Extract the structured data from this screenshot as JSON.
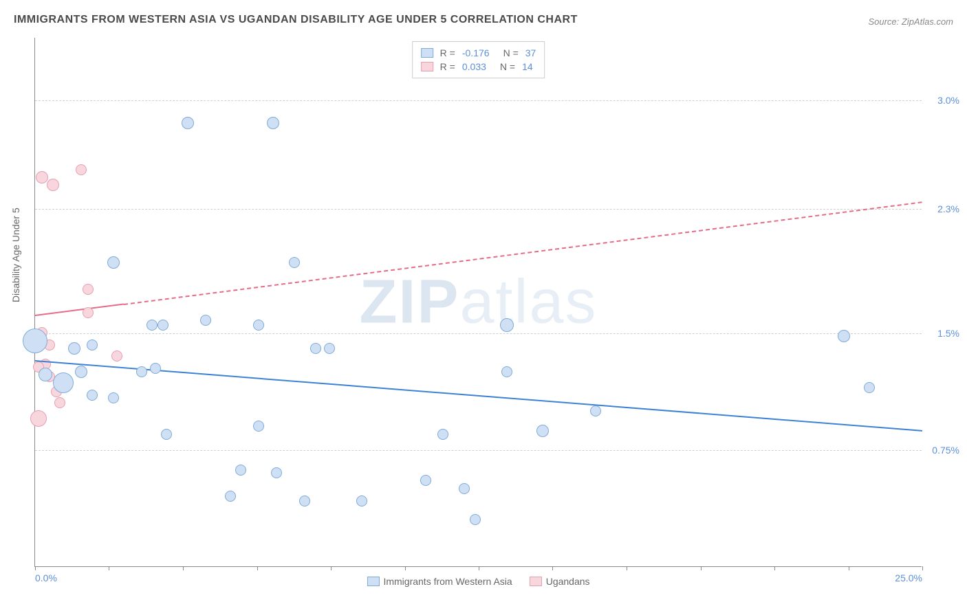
{
  "title": "IMMIGRANTS FROM WESTERN ASIA VS UGANDAN DISABILITY AGE UNDER 5 CORRELATION CHART",
  "source": "Source: ZipAtlas.com",
  "watermark_a": "ZIP",
  "watermark_b": "atlas",
  "y_label": "Disability Age Under 5",
  "chart": {
    "type": "scatter",
    "background_color": "#ffffff",
    "grid_color": "#d0d0d0",
    "axis_color": "#888888",
    "x_range": [
      0.0,
      25.0
    ],
    "y_range": [
      0.0,
      3.4
    ],
    "x_ticks": [
      0.0,
      25.0
    ],
    "x_tick_labels": [
      "0.0%",
      "25.0%"
    ],
    "y_gridlines": [
      0.75,
      1.5,
      2.3,
      3.0
    ],
    "y_tick_labels": [
      "0.75%",
      "1.5%",
      "2.3%",
      "3.0%"
    ],
    "x_tick_marks": [
      0,
      2.08,
      4.17,
      6.25,
      8.33,
      10.42,
      12.5,
      14.58,
      16.67,
      18.75,
      20.83,
      22.92,
      25.0
    ],
    "series": [
      {
        "name": "Immigrants from Western Asia",
        "fill": "#cfe0f5",
        "stroke": "#7faad8",
        "R": "-0.176",
        "N": "37",
        "trend": {
          "x1": 0.0,
          "y1": 1.33,
          "x2": 25.0,
          "y2": 0.88,
          "solid_until_x": 25.0,
          "color": "#3b82d6",
          "width": 2.5
        },
        "points": [
          {
            "x": 0.0,
            "y": 1.45,
            "r": 18
          },
          {
            "x": 0.8,
            "y": 1.18,
            "r": 15
          },
          {
            "x": 0.3,
            "y": 1.23,
            "r": 10
          },
          {
            "x": 1.1,
            "y": 1.4,
            "r": 9
          },
          {
            "x": 1.3,
            "y": 1.25,
            "r": 9
          },
          {
            "x": 1.6,
            "y": 1.42,
            "r": 8
          },
          {
            "x": 3.0,
            "y": 1.25,
            "r": 8
          },
          {
            "x": 2.2,
            "y": 1.08,
            "r": 8
          },
          {
            "x": 2.2,
            "y": 1.95,
            "r": 9
          },
          {
            "x": 3.6,
            "y": 1.55,
            "r": 8
          },
          {
            "x": 3.4,
            "y": 1.27,
            "r": 8
          },
          {
            "x": 4.8,
            "y": 1.58,
            "r": 8
          },
          {
            "x": 4.3,
            "y": 2.85,
            "r": 9
          },
          {
            "x": 6.7,
            "y": 2.85,
            "r": 9
          },
          {
            "x": 6.3,
            "y": 1.55,
            "r": 8
          },
          {
            "x": 5.8,
            "y": 0.62,
            "r": 8
          },
          {
            "x": 7.3,
            "y": 1.95,
            "r": 8
          },
          {
            "x": 7.9,
            "y": 1.4,
            "r": 8
          },
          {
            "x": 8.3,
            "y": 1.4,
            "r": 8
          },
          {
            "x": 11.0,
            "y": 0.55,
            "r": 8
          },
          {
            "x": 11.5,
            "y": 0.85,
            "r": 8
          },
          {
            "x": 12.1,
            "y": 0.5,
            "r": 8
          },
          {
            "x": 12.4,
            "y": 0.3,
            "r": 8
          },
          {
            "x": 13.3,
            "y": 1.25,
            "r": 8
          },
          {
            "x": 13.3,
            "y": 1.55,
            "r": 10
          },
          {
            "x": 14.3,
            "y": 0.87,
            "r": 9
          },
          {
            "x": 15.8,
            "y": 1.0,
            "r": 8
          },
          {
            "x": 22.8,
            "y": 1.48,
            "r": 9
          },
          {
            "x": 23.5,
            "y": 1.15,
            "r": 8
          },
          {
            "x": 3.7,
            "y": 0.85,
            "r": 8
          },
          {
            "x": 5.5,
            "y": 0.45,
            "r": 8
          },
          {
            "x": 6.3,
            "y": 0.9,
            "r": 8
          },
          {
            "x": 6.8,
            "y": 0.6,
            "r": 8
          },
          {
            "x": 7.6,
            "y": 0.42,
            "r": 8
          },
          {
            "x": 9.2,
            "y": 0.42,
            "r": 8
          },
          {
            "x": 3.3,
            "y": 1.55,
            "r": 8
          },
          {
            "x": 1.6,
            "y": 1.1,
            "r": 8
          }
        ]
      },
      {
        "name": "Ugandans",
        "fill": "#f7d6dd",
        "stroke": "#e89fae",
        "R": "0.033",
        "N": "14",
        "trend": {
          "x1": 0.0,
          "y1": 1.62,
          "x2": 25.0,
          "y2": 2.35,
          "solid_until_x": 2.5,
          "color": "#e56b87",
          "width": 2
        },
        "points": [
          {
            "x": 0.2,
            "y": 2.5,
            "r": 9
          },
          {
            "x": 0.5,
            "y": 2.45,
            "r": 9
          },
          {
            "x": 1.3,
            "y": 2.55,
            "r": 8
          },
          {
            "x": 0.3,
            "y": 1.3,
            "r": 8
          },
          {
            "x": 0.4,
            "y": 1.42,
            "r": 8
          },
          {
            "x": 0.4,
            "y": 1.22,
            "r": 8
          },
          {
            "x": 0.1,
            "y": 0.95,
            "r": 12
          },
          {
            "x": 0.1,
            "y": 1.28,
            "r": 8
          },
          {
            "x": 0.6,
            "y": 1.12,
            "r": 8
          },
          {
            "x": 0.7,
            "y": 1.05,
            "r": 8
          },
          {
            "x": 1.5,
            "y": 1.78,
            "r": 8
          },
          {
            "x": 1.5,
            "y": 1.63,
            "r": 8
          },
          {
            "x": 2.3,
            "y": 1.35,
            "r": 8
          },
          {
            "x": 0.2,
            "y": 1.5,
            "r": 8
          }
        ]
      }
    ]
  },
  "bottom_legend": [
    {
      "label": "Immigrants from Western Asia",
      "fill": "#cfe0f5",
      "stroke": "#7faad8"
    },
    {
      "label": "Ugandans",
      "fill": "#f7d6dd",
      "stroke": "#e89fae"
    }
  ]
}
